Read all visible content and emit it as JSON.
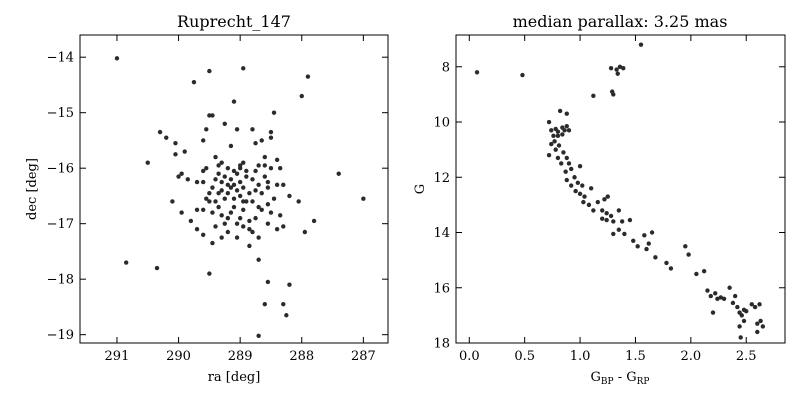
{
  "chart_data": [
    {
      "type": "scatter",
      "title": "Ruprecht_147",
      "xlabel": "ra [deg]",
      "ylabel": "dec [deg]",
      "xlim": [
        291.6,
        286.6
      ],
      "ylim": [
        -19.15,
        -13.6
      ],
      "x_inverted": true,
      "xticks": [
        291,
        290,
        289,
        288,
        287
      ],
      "xtick_labels": [
        "291",
        "290",
        "289",
        "288",
        "287"
      ],
      "yticks": [
        -14,
        -15,
        -16,
        -17,
        -18,
        -19
      ],
      "ytick_labels": [
        "−14",
        "−15",
        "−16",
        "−17",
        "−18",
        "−19"
      ],
      "grid": false,
      "point_color": "#2b2b2b",
      "points": [
        [
          291.0,
          -14.02
        ],
        [
          290.5,
          -15.9
        ],
        [
          290.3,
          -15.35
        ],
        [
          290.2,
          -15.45
        ],
        [
          290.1,
          -16.6
        ],
        [
          290.05,
          -15.55
        ],
        [
          290.05,
          -15.75
        ],
        [
          289.95,
          -16.1
        ],
        [
          289.9,
          -15.7
        ],
        [
          289.95,
          -16.8
        ],
        [
          289.75,
          -14.45
        ],
        [
          289.7,
          -16.25
        ],
        [
          289.7,
          -17.1
        ],
        [
          289.6,
          -15.5
        ],
        [
          289.6,
          -16.25
        ],
        [
          289.55,
          -15.3
        ],
        [
          289.55,
          -16.0
        ],
        [
          289.5,
          -14.25
        ],
        [
          289.5,
          -15.05
        ],
        [
          289.5,
          -16.6
        ],
        [
          289.45,
          -16.8
        ],
        [
          289.45,
          -17.35
        ],
        [
          289.6,
          -17.2
        ],
        [
          289.5,
          -17.9
        ],
        [
          289.4,
          -15.8
        ],
        [
          289.35,
          -16.1
        ],
        [
          289.3,
          -16.4
        ],
        [
          289.3,
          -16.85
        ],
        [
          289.25,
          -15.2
        ],
        [
          289.25,
          -17.0
        ],
        [
          289.2,
          -16.0
        ],
        [
          289.15,
          -15.6
        ],
        [
          289.1,
          -14.8
        ],
        [
          289.1,
          -16.3
        ],
        [
          289.05,
          -15.3
        ],
        [
          289.0,
          -16.5
        ],
        [
          289.0,
          -16.9
        ],
        [
          288.95,
          -14.2
        ],
        [
          288.95,
          -15.9
        ],
        [
          288.9,
          -16.6
        ],
        [
          288.85,
          -17.1
        ],
        [
          288.8,
          -15.3
        ],
        [
          288.75,
          -16.05
        ],
        [
          288.7,
          -16.3
        ],
        [
          288.7,
          -16.7
        ],
        [
          288.65,
          -15.5
        ],
        [
          288.6,
          -15.95
        ],
        [
          288.55,
          -16.35
        ],
        [
          288.5,
          -15.35
        ],
        [
          288.5,
          -16.8
        ],
        [
          288.45,
          -15.0
        ],
        [
          288.4,
          -16.3
        ],
        [
          288.4,
          -17.1
        ],
        [
          288.35,
          -16.0
        ],
        [
          288.3,
          -17.05
        ],
        [
          288.2,
          -16.5
        ],
        [
          288.05,
          -16.6
        ],
        [
          288.0,
          -14.7
        ],
        [
          287.95,
          -17.15
        ],
        [
          287.9,
          -14.35
        ],
        [
          287.8,
          -16.95
        ],
        [
          287.4,
          -16.1
        ],
        [
          287.0,
          -16.55
        ],
        [
          290.85,
          -17.7
        ],
        [
          290.35,
          -17.8
        ],
        [
          288.7,
          -17.65
        ],
        [
          288.55,
          -18.05
        ],
        [
          288.3,
          -18.45
        ],
        [
          288.25,
          -18.65
        ],
        [
          288.2,
          -18.1
        ],
        [
          288.6,
          -18.45
        ],
        [
          288.7,
          -19.02
        ],
        [
          289.8,
          -16.95
        ],
        [
          289.6,
          -16.05
        ],
        [
          289.55,
          -16.55
        ],
        [
          289.4,
          -16.2
        ],
        [
          289.35,
          -16.7
        ],
        [
          289.3,
          -15.9
        ],
        [
          289.25,
          -16.15
        ],
        [
          289.2,
          -16.45
        ],
        [
          289.2,
          -16.9
        ],
        [
          289.15,
          -16.2
        ],
        [
          289.1,
          -16.7
        ],
        [
          289.05,
          -16.1
        ],
        [
          289.05,
          -17.0
        ],
        [
          289.0,
          -16.25
        ],
        [
          288.95,
          -16.35
        ],
        [
          288.95,
          -16.75
        ],
        [
          288.9,
          -16.15
        ],
        [
          288.85,
          -16.45
        ],
        [
          288.85,
          -16.95
        ],
        [
          288.8,
          -16.2
        ],
        [
          288.8,
          -16.6
        ],
        [
          288.75,
          -16.9
        ],
        [
          288.7,
          -15.95
        ],
        [
          288.65,
          -16.45
        ],
        [
          288.6,
          -16.15
        ],
        [
          288.55,
          -16.65
        ],
        [
          288.5,
          -16.0
        ],
        [
          288.45,
          -16.55
        ],
        [
          288.4,
          -15.85
        ],
        [
          288.35,
          -16.85
        ],
        [
          288.3,
          -16.3
        ],
        [
          289.15,
          -16.35
        ],
        [
          289.1,
          -16.05
        ],
        [
          289.0,
          -16.0
        ],
        [
          288.95,
          -16.6
        ],
        [
          289.0,
          -15.95
        ],
        [
          289.1,
          -16.55
        ],
        [
          289.2,
          -16.3
        ],
        [
          289.25,
          -16.55
        ],
        [
          289.3,
          -16.25
        ],
        [
          289.35,
          -16.45
        ],
        [
          289.4,
          -16.6
        ],
        [
          289.45,
          -16.35
        ],
        [
          289.15,
          -16.8
        ],
        [
          289.05,
          -16.4
        ],
        [
          288.9,
          -16.05
        ],
        [
          288.75,
          -16.4
        ],
        [
          288.65,
          -16.75
        ],
        [
          288.55,
          -16.25
        ],
        [
          289.3,
          -17.25
        ],
        [
          289.2,
          -17.15
        ],
        [
          289.05,
          -17.25
        ],
        [
          288.85,
          -17.4
        ],
        [
          288.7,
          -17.25
        ],
        [
          288.55,
          -17.0
        ],
        [
          289.7,
          -16.75
        ],
        [
          289.85,
          -16.2
        ],
        [
          290.0,
          -16.15
        ],
        [
          289.5,
          -16.45
        ],
        [
          289.6,
          -16.75
        ],
        [
          289.4,
          -17.05
        ],
        [
          288.95,
          -17.05
        ],
        [
          288.8,
          -17.15
        ],
        [
          288.6,
          -15.8
        ],
        [
          288.75,
          -15.55
        ],
        [
          288.5,
          -15.45
        ],
        [
          289.45,
          -15.05
        ],
        [
          289.35,
          -15.95
        ]
      ]
    },
    {
      "type": "scatter",
      "title": "median parallax: 3.25 mas",
      "xlabel": "G_BP - G_RP",
      "xlabel_main": "G",
      "xlabel_sub1": "BP",
      "xlabel_sep": " - G",
      "xlabel_sub2": "RP",
      "ylabel": "G",
      "xlim": [
        -0.12,
        2.85
      ],
      "ylim": [
        18.0,
        6.85
      ],
      "y_inverted": true,
      "xticks": [
        0.0,
        0.5,
        1.0,
        1.5,
        2.0,
        2.5
      ],
      "xtick_labels": [
        "0.0",
        "0.5",
        "1.0",
        "1.5",
        "2.0",
        "2.5"
      ],
      "yticks": [
        8,
        10,
        12,
        14,
        16,
        18
      ],
      "ytick_labels": [
        "8",
        "10",
        "12",
        "14",
        "16",
        "18"
      ],
      "grid": false,
      "point_color": "#2b2b2b",
      "points": [
        [
          0.07,
          8.2
        ],
        [
          0.48,
          8.3
        ],
        [
          1.55,
          7.2
        ],
        [
          1.28,
          8.05
        ],
        [
          1.33,
          8.1
        ],
        [
          1.36,
          8.0
        ],
        [
          1.39,
          8.05
        ],
        [
          1.34,
          8.25
        ],
        [
          1.29,
          8.9
        ],
        [
          1.3,
          9.0
        ],
        [
          1.12,
          9.05
        ],
        [
          0.82,
          9.6
        ],
        [
          0.88,
          9.7
        ],
        [
          0.72,
          10.0
        ],
        [
          0.74,
          10.3
        ],
        [
          0.78,
          10.25
        ],
        [
          0.8,
          10.35
        ],
        [
          0.84,
          10.2
        ],
        [
          0.86,
          10.3
        ],
        [
          0.88,
          10.15
        ],
        [
          0.9,
          10.3
        ],
        [
          0.76,
          10.5
        ],
        [
          0.8,
          10.5
        ],
        [
          0.84,
          10.45
        ],
        [
          0.74,
          10.8
        ],
        [
          0.77,
          10.7
        ],
        [
          0.81,
          10.85
        ],
        [
          0.72,
          11.2
        ],
        [
          0.78,
          11.0
        ],
        [
          0.8,
          11.3
        ],
        [
          0.85,
          11.1
        ],
        [
          0.83,
          11.5
        ],
        [
          0.88,
          11.3
        ],
        [
          0.9,
          11.5
        ],
        [
          0.87,
          11.8
        ],
        [
          0.92,
          11.7
        ],
        [
          1.0,
          11.6
        ],
        [
          0.95,
          12.0
        ],
        [
          0.88,
          12.1
        ],
        [
          0.92,
          12.3
        ],
        [
          0.98,
          12.2
        ],
        [
          1.02,
          12.3
        ],
        [
          0.96,
          12.5
        ],
        [
          1.0,
          12.6
        ],
        [
          1.04,
          12.7
        ],
        [
          1.1,
          12.4
        ],
        [
          1.03,
          12.9
        ],
        [
          1.08,
          13.0
        ],
        [
          1.12,
          13.2
        ],
        [
          1.16,
          12.9
        ],
        [
          1.2,
          13.2
        ],
        [
          1.22,
          12.8
        ],
        [
          1.25,
          12.7
        ],
        [
          1.24,
          13.3
        ],
        [
          1.28,
          13.4
        ],
        [
          1.2,
          13.5
        ],
        [
          1.24,
          13.55
        ],
        [
          1.3,
          13.6
        ],
        [
          1.35,
          13.2
        ],
        [
          1.38,
          13.6
        ],
        [
          1.45,
          13.55
        ],
        [
          1.35,
          13.9
        ],
        [
          1.4,
          14.05
        ],
        [
          1.48,
          14.3
        ],
        [
          1.52,
          14.5
        ],
        [
          1.6,
          14.6
        ],
        [
          1.62,
          14.4
        ],
        [
          1.65,
          14.0
        ],
        [
          1.68,
          14.9
        ],
        [
          1.58,
          14.1
        ],
        [
          1.3,
          14.05
        ],
        [
          1.78,
          15.1
        ],
        [
          1.82,
          15.3
        ],
        [
          1.95,
          14.5
        ],
        [
          1.98,
          14.8
        ],
        [
          2.05,
          15.5
        ],
        [
          2.12,
          15.4
        ],
        [
          2.15,
          16.1
        ],
        [
          2.18,
          16.3
        ],
        [
          2.22,
          16.2
        ],
        [
          2.24,
          16.4
        ],
        [
          2.27,
          16.35
        ],
        [
          2.3,
          16.4
        ],
        [
          2.2,
          16.9
        ],
        [
          2.35,
          16.0
        ],
        [
          2.38,
          16.55
        ],
        [
          2.42,
          16.7
        ],
        [
          2.44,
          16.9
        ],
        [
          2.46,
          17.0
        ],
        [
          2.5,
          16.85
        ],
        [
          2.48,
          17.2
        ],
        [
          2.55,
          16.6
        ],
        [
          2.58,
          16.7
        ],
        [
          2.6,
          17.3
        ],
        [
          2.62,
          16.6
        ],
        [
          2.6,
          17.6
        ],
        [
          2.65,
          17.4
        ],
        [
          2.44,
          17.4
        ],
        [
          2.45,
          17.8
        ],
        [
          2.63,
          17.2
        ],
        [
          2.4,
          16.3
        ],
        [
          2.48,
          16.8
        ]
      ]
    }
  ]
}
